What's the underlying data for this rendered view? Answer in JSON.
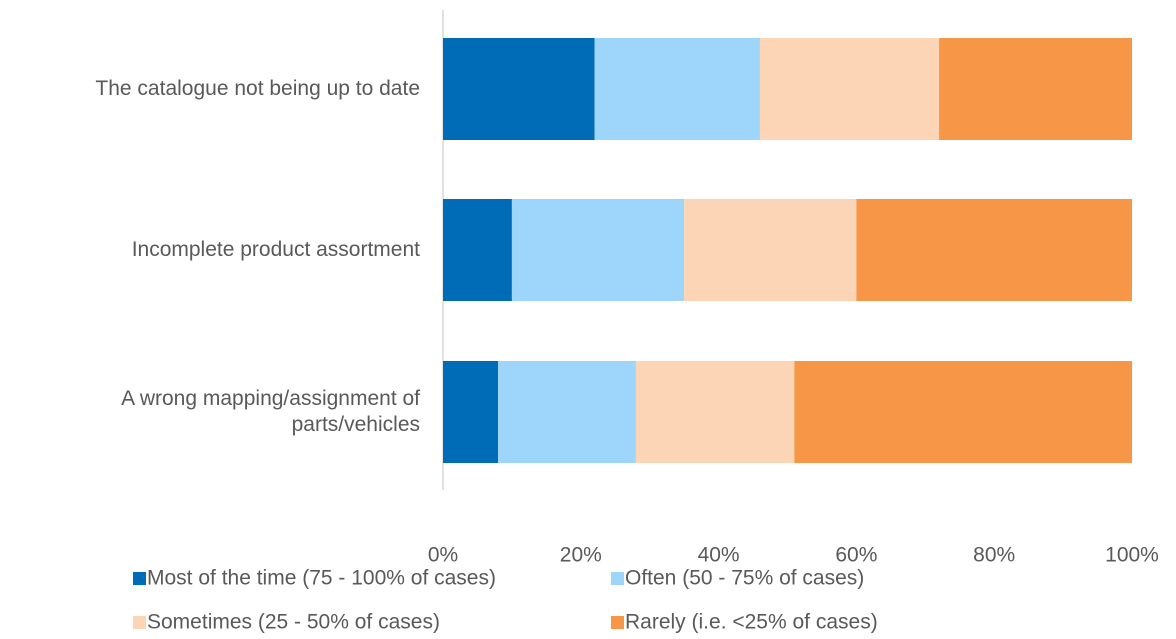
{
  "chart_data": {
    "type": "stacked_barh",
    "categories": [
      "The catalogue not being up to date",
      "Incomplete product assortment",
      "A wrong mapping/assignment of parts/vehicles"
    ],
    "series": [
      {
        "name": "Most of the time (75 - 100% of cases)",
        "color": "#006bb6",
        "values": [
          22,
          10,
          8
        ]
      },
      {
        "name": "Often (50 - 75% of cases)",
        "color": "#9dd5fb",
        "values": [
          24,
          25,
          20
        ]
      },
      {
        "name": "Sometimes (25 - 50% of cases)",
        "color": "#fbd5b5",
        "values": [
          26,
          25,
          23
        ]
      },
      {
        "name": "Rarely (i.e. <25% of cases)",
        "color": "#f79646",
        "values": [
          28,
          40,
          49
        ]
      }
    ],
    "xlim": [
      0,
      100
    ],
    "xticks": [
      {
        "value": 0,
        "label": "0%"
      },
      {
        "value": 20,
        "label": "20%"
      },
      {
        "value": 40,
        "label": "40%"
      },
      {
        "value": 60,
        "label": "60%"
      },
      {
        "value": 80,
        "label": "80%"
      },
      {
        "value": 100,
        "label": "100%"
      }
    ],
    "grid": false,
    "legend": "bottom"
  }
}
